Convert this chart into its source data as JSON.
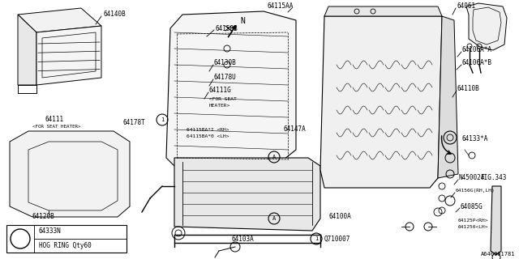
{
  "bg_color": "#ffffff",
  "line_color": "#000000",
  "fig_ref": "A640001781",
  "hog_ring_part": "64333N",
  "hog_ring_desc": "HOG RING Qty60",
  "q_ref": "Q710007"
}
